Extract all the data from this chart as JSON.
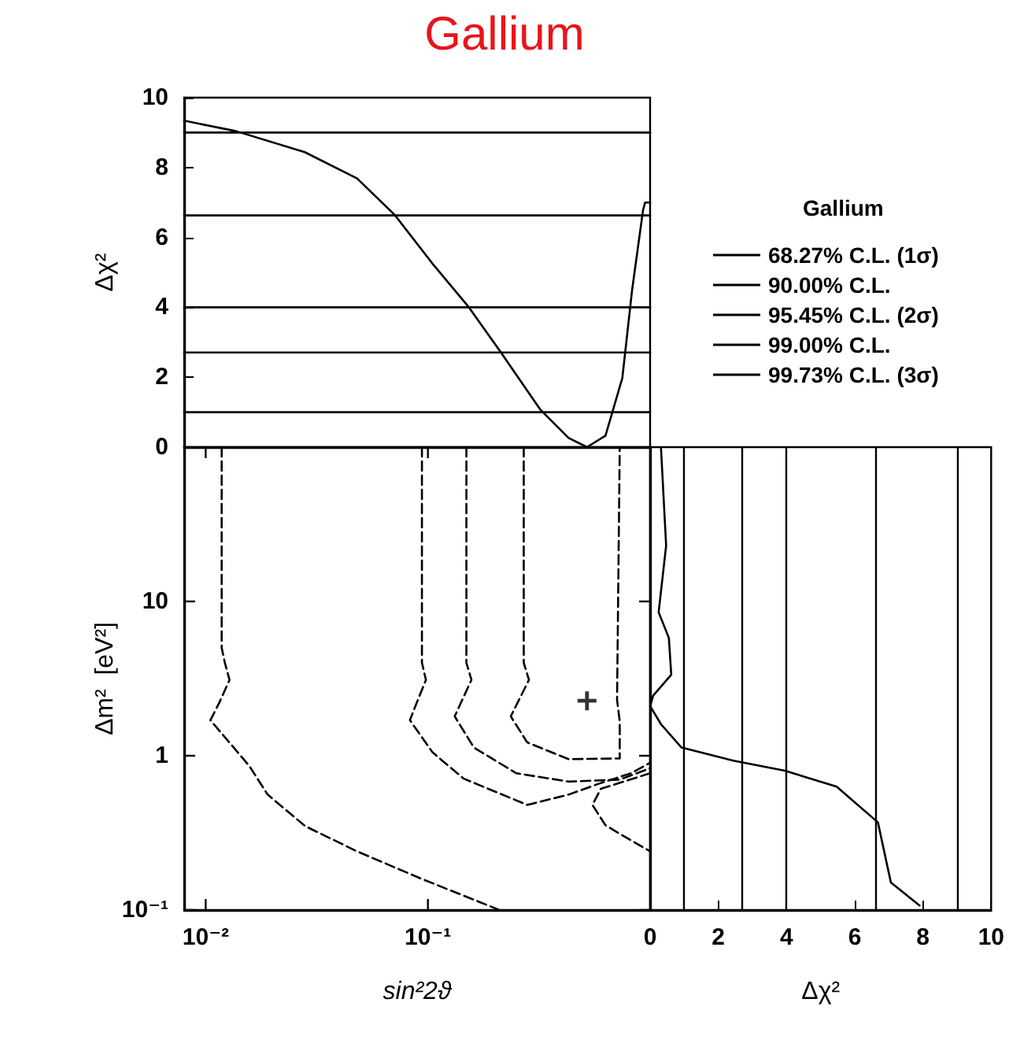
{
  "chart_data": [
    {
      "type": "line",
      "title": "Gallium",
      "ylabel": "Δχ²",
      "legend": "right",
      "legend_title": "Gallium",
      "xlim": [
        0.008,
        1
      ],
      "ylim": [
        0,
        10
      ],
      "yticks": [
        0,
        2,
        4,
        6,
        8,
        10
      ],
      "log": "x",
      "tick_labels": "y",
      "marker": "none",
      "series": [
        {
          "color": "#000000",
          "x": [
            0.008,
            0.0137,
            0.0279,
            0.048,
            0.071,
            0.104,
            0.153,
            0.212,
            0.32,
            0.43,
            0.52,
            0.63,
            0.75,
            0.83,
            0.93,
            0.95,
            1
          ],
          "values": [
            9.34,
            9.04,
            8.44,
            7.69,
            6.64,
            5.28,
            4.0,
            2.73,
            1.08,
            0.26,
            0,
            0.33,
            1.98,
            4.5,
            6.79,
            7.0,
            7.0
          ]
        },
        {
          "name": "68.27% C.L. (1σ)",
          "color": "#000000",
          "x": [
            0.008,
            1
          ],
          "values": [
            1,
            1
          ]
        },
        {
          "name": "90.00% C.L.",
          "color": "#000000",
          "x": [
            0.008,
            1
          ],
          "values": [
            2.71,
            2.71
          ]
        },
        {
          "name": "95.45% C.L. (2σ)",
          "color": "#000000",
          "x": [
            0.008,
            1
          ],
          "values": [
            4,
            4
          ]
        },
        {
          "name": "99.00% C.L.",
          "color": "#000000",
          "x": [
            0.008,
            1
          ],
          "values": [
            6.63,
            6.63
          ]
        },
        {
          "name": "99.73% C.L. (3σ)",
          "color": "#000000",
          "x": [
            0.008,
            1
          ],
          "values": [
            9,
            9
          ]
        }
      ]
    },
    {
      "type": "line",
      "xlabel": "sin²2ϑ",
      "ylabel": "Δm²  [eV²]",
      "xlim": [
        0.008,
        1
      ],
      "xticks": [
        {
          "value": 0.01,
          "label": "10⁻²"
        },
        {
          "value": 0.1,
          "label": "10⁻¹"
        }
      ],
      "ylim": [
        0.1,
        100
      ],
      "yticks": [
        {
          "value": 0.1,
          "label": "10⁻¹"
        },
        1,
        10
      ],
      "log": "xy",
      "marker": "none",
      "line_style": "dashed",
      "series": [
        {
          "color": "#000000",
          "x": [
            0.27,
            0.27,
            0.285,
            0.236,
            0.28,
            0.43,
            0.73,
            0.73,
            0.71,
            0.73
          ],
          "values": [
            100,
            4,
            3.1,
            1.8,
            1.22,
            0.95,
            0.96,
            1.67,
            2.3,
            100
          ]
        },
        {
          "color": "#000000",
          "x": [
            0.149,
            0.149,
            0.157,
            0.132,
            0.161,
            0.25,
            0.43,
            0.73,
            1
          ],
          "values": [
            100,
            4,
            3.1,
            1.8,
            1.13,
            0.77,
            0.68,
            0.7,
            0.83
          ]
        },
        {
          "color": "#000000",
          "x": [
            0.094,
            0.094,
            0.098,
            0.089,
            0.083,
            0.105,
            0.145,
            0.28,
            0.43,
            0.59,
            0.82,
            1
          ],
          "values": [
            100,
            4,
            3.1,
            2.2,
            1.7,
            1.05,
            0.71,
            0.48,
            0.56,
            0.66,
            0.77,
            0.9
          ]
        },
        {
          "color": "#000000",
          "x": [
            0.0118,
            0.0118,
            0.0122,
            0.0128,
            0.0115,
            0.0105,
            0.0123,
            0.0157,
            0.019,
            0.028,
            0.048,
            0.093,
            0.21
          ],
          "values": [
            100,
            5,
            4,
            3.1,
            2.2,
            1.7,
            1.3,
            0.86,
            0.56,
            0.35,
            0.24,
            0.16,
            0.1
          ]
        },
        {
          "color": "#000000",
          "x": [
            1,
            0.6,
            0.55,
            0.63,
            0.83,
            1
          ],
          "values": [
            0.77,
            0.61,
            0.48,
            0.354,
            0.28,
            0.24
          ]
        },
        {
          "type": "scatter",
          "marker": "cross",
          "color": "#000000",
          "x": [
            0.52
          ],
          "values": [
            2.27
          ]
        }
      ]
    },
    {
      "type": "line",
      "xlabel": "Δχ²",
      "xlim": [
        0,
        10
      ],
      "xticks": [
        0,
        2,
        4,
        6,
        8,
        10
      ],
      "ylim": [
        0.1,
        100
      ],
      "log": "y",
      "tick_labels": "x",
      "marker": "none",
      "ref_lines": [
        {
          "axis": "x",
          "value": 1,
          "label": null
        },
        {
          "axis": "x",
          "value": 2.71,
          "label": null
        },
        {
          "axis": "x",
          "value": 4,
          "label": null
        },
        {
          "axis": "x",
          "value": 6.63,
          "label": null
        },
        {
          "axis": "x",
          "value": 9,
          "label": null
        }
      ],
      "series": [
        {
          "color": "#000000",
          "x": [
            0.32,
            0.47,
            0.25,
            0.55,
            0.62,
            0.09,
            0,
            0.32,
            0.92,
            2.44,
            3.95,
            5.47,
            6.68,
            7.06,
            7.9
          ],
          "values": [
            98,
            23,
            8.5,
            5.8,
            3.35,
            2.45,
            2.1,
            1.6,
            1.13,
            0.93,
            0.8,
            0.63,
            0.37,
            0.151,
            0.107
          ]
        }
      ]
    }
  ]
}
